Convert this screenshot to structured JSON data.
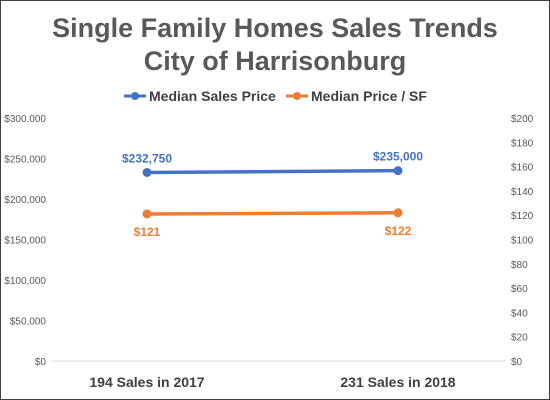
{
  "chart_data": {
    "type": "line",
    "title_lines": [
      "Single Family Homes Sales Trends",
      "City of Harrisonburg"
    ],
    "categories": [
      "194 Sales in 2017",
      "231 Sales in 2018"
    ],
    "series": [
      {
        "name": "Median Sales Price",
        "axis": "left",
        "values": [
          232750,
          235000
        ],
        "labels": [
          "$232,750",
          "$235,000"
        ],
        "label_position": "above",
        "color": "#4472C4"
      },
      {
        "name": "Median Price / SF",
        "axis": "right",
        "values": [
          121,
          122
        ],
        "labels": [
          "$121",
          "$122"
        ],
        "label_position": "below",
        "color": "#ED7D31"
      }
    ],
    "y_left": {
      "ylim": [
        0,
        300000
      ],
      "ticks": [
        0,
        50000,
        100000,
        150000,
        200000,
        250000,
        300000
      ],
      "tick_labels": [
        "$0",
        "$50,000",
        "$100,000",
        "$150,000",
        "$200,000",
        "$250,000",
        "$300,000"
      ]
    },
    "y_right": {
      "ylim": [
        0,
        200
      ],
      "ticks": [
        0,
        20,
        40,
        60,
        80,
        100,
        120,
        140,
        160,
        180,
        200
      ],
      "tick_labels": [
        "$0",
        "$20",
        "$40",
        "$60",
        "$80",
        "$100",
        "$120",
        "$140",
        "$160",
        "$180",
        "$200"
      ]
    },
    "legend_position": "top",
    "grid": false,
    "axis_line_color": "#D9D9D9"
  }
}
